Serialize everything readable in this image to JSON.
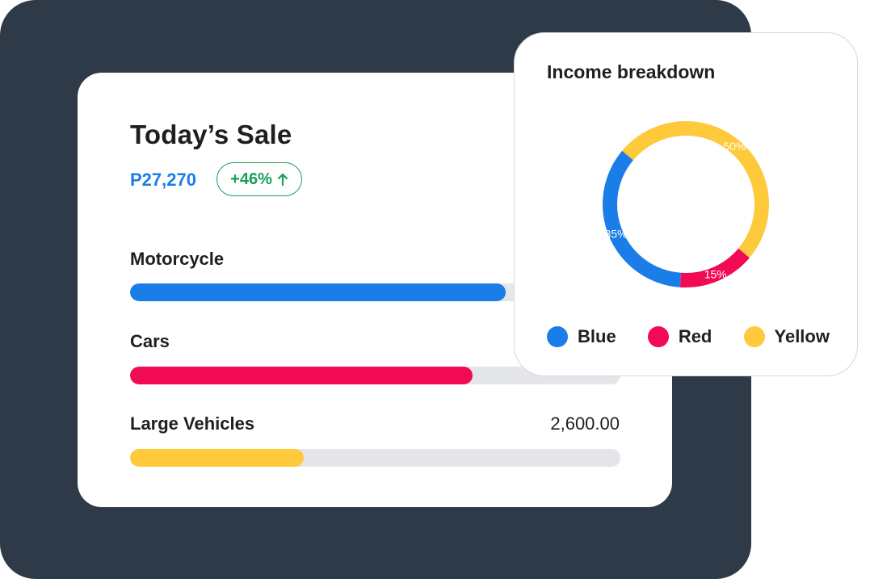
{
  "sale": {
    "title": "Today’s Sale",
    "amount": "P27,270",
    "change": "+46%",
    "change_color": "#17a058",
    "amount_color": "#1a7de8"
  },
  "categories": [
    {
      "label": "Motorcycle",
      "value": "",
      "fill_fraction": 0.766,
      "color": "#1a7de8"
    },
    {
      "label": "Cars",
      "value": "",
      "fill_fraction": 0.698,
      "color": "#f20a54"
    },
    {
      "label": "Large Vehicles",
      "value": "2,600.00",
      "fill_fraction": 0.354,
      "color": "#ffc93c"
    }
  ],
  "income": {
    "title": "Income breakdown",
    "legend": [
      {
        "label": "Blue",
        "color": "#1a7de8",
        "icon": "blue-dot"
      },
      {
        "label": "Red",
        "color": "#f20a54",
        "icon": "red-dot"
      },
      {
        "label": "Yellow",
        "color": "#ffc93c",
        "icon": "yellow-dot"
      }
    ]
  },
  "chart_data": {
    "type": "pie",
    "title": "Income breakdown",
    "categories": [
      "Blue",
      "Red",
      "Yellow"
    ],
    "values": [
      35,
      15,
      50
    ],
    "labels": [
      "35%",
      "15%",
      "50%"
    ],
    "colors": [
      "#1a7de8",
      "#f20a54",
      "#ffc93c"
    ],
    "donut": true
  }
}
